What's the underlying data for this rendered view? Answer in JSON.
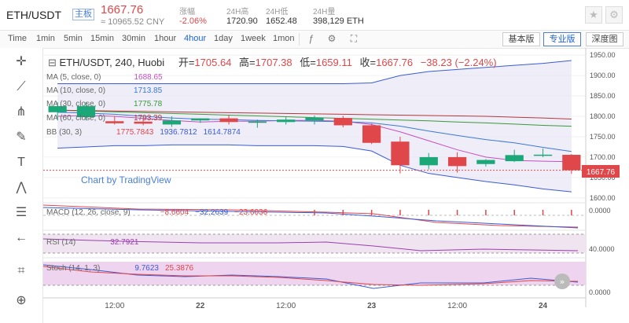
{
  "header": {
    "pair": "ETH/USDT",
    "tag": "主板",
    "last_price": "1667.76",
    "cny": "≈ 10965.52 CNY",
    "stats": [
      {
        "label": "涨幅",
        "value": "-2.06%",
        "red": true
      },
      {
        "label": "24H高",
        "value": "1720.90",
        "red": false
      },
      {
        "label": "24H低",
        "value": "1652.48",
        "red": false
      },
      {
        "label": "24H量",
        "value": "398,129 ETH",
        "red": false
      }
    ]
  },
  "toolbar": {
    "timeframes": [
      "Time",
      "1min",
      "5min",
      "15min",
      "30min",
      "1hour",
      "4hour",
      "1day",
      "1week",
      "1mon"
    ],
    "active": "4hour",
    "views": [
      "基本版",
      "专业版",
      "深度图"
    ],
    "active_view": "专业版"
  },
  "chart_data": {
    "type": "candlestick",
    "symbol_line": {
      "symbol": "ETH/USDT, 240, Huobi",
      "open_label": "开=",
      "open": "1705.64",
      "high_label": "高=",
      "high": "1707.38",
      "low_label": "低=",
      "low": "1659.11",
      "close_label": "收=",
      "close": "1667.76",
      "change": "−38.23 (−2.24%)"
    },
    "watermark": "Chart by TradingView",
    "price_axis": {
      "ticks": [
        1950,
        1900,
        1850,
        1800,
        1750,
        1700,
        1650,
        1600
      ],
      "ylim": [
        1590,
        1960
      ],
      "last": "1667.76"
    },
    "time_axis": {
      "labels": [
        "12:00",
        "22",
        "12:00",
        "23",
        "12:00",
        "24"
      ],
      "label_positions": [
        2.5,
        5.5,
        8.5,
        11.5,
        14.5,
        17.5
      ]
    },
    "candles": [
      {
        "o": 1810,
        "h": 1835,
        "l": 1790,
        "c": 1825
      },
      {
        "o": 1798,
        "h": 1835,
        "l": 1790,
        "c": 1825
      },
      {
        "o": 1788,
        "h": 1800,
        "l": 1780,
        "c": 1783
      },
      {
        "o": 1787,
        "h": 1795,
        "l": 1778,
        "c": 1782
      },
      {
        "o": 1780,
        "h": 1800,
        "l": 1774,
        "c": 1790
      },
      {
        "o": 1790,
        "h": 1795,
        "l": 1784,
        "c": 1795
      },
      {
        "o": 1795,
        "h": 1803,
        "l": 1780,
        "c": 1786
      },
      {
        "o": 1785,
        "h": 1792,
        "l": 1772,
        "c": 1787
      },
      {
        "o": 1786,
        "h": 1798,
        "l": 1780,
        "c": 1792
      },
      {
        "o": 1790,
        "h": 1802,
        "l": 1780,
        "c": 1797
      },
      {
        "o": 1796,
        "h": 1801,
        "l": 1773,
        "c": 1778
      },
      {
        "o": 1778,
        "h": 1782,
        "l": 1732,
        "c": 1735
      },
      {
        "o": 1738,
        "h": 1750,
        "l": 1660,
        "c": 1680
      },
      {
        "o": 1680,
        "h": 1710,
        "l": 1670,
        "c": 1700
      },
      {
        "o": 1700,
        "h": 1712,
        "l": 1662,
        "c": 1678
      },
      {
        "o": 1683,
        "h": 1695,
        "l": 1677,
        "c": 1693
      },
      {
        "o": 1690,
        "h": 1718,
        "l": 1688,
        "c": 1705
      },
      {
        "o": 1704,
        "h": 1721,
        "l": 1700,
        "c": 1706
      },
      {
        "o": 1705.64,
        "h": 1707.38,
        "l": 1659.11,
        "c": 1667.76
      }
    ],
    "ma_labels": [
      {
        "name": "MA (5, close, 0)",
        "value": "1688.65",
        "color": "#c64fc0"
      },
      {
        "name": "MA (10, close, 0)",
        "value": "1713.85",
        "color": "#3b7ad6"
      },
      {
        "name": "MA (30, close, 0)",
        "value": "1775.78",
        "color": "#3a9a3a"
      },
      {
        "name": "MA (60, close, 0)",
        "value": "1793.39",
        "color": "#b23a3a"
      }
    ],
    "bb_label": {
      "name": "BB (30, 3)",
      "values": [
        "1775.7843",
        "1936.7812",
        "1614.7874"
      ],
      "colors": [
        "#e0474a",
        "#3b5bd6",
        "#3b5bd6"
      ]
    },
    "series": [
      {
        "name": "MA (5, close, 0)",
        "color": "#c64fc0",
        "values": [
          1800,
          1802,
          1800,
          1795,
          1790,
          1786,
          1788,
          1788,
          1790,
          1790,
          1788,
          1780,
          1762,
          1740,
          1718,
          1700,
          1692,
          1690,
          1688.65
        ]
      },
      {
        "name": "MA (10, close, 0)",
        "color": "#3b7ad6",
        "values": [
          1810,
          1808,
          1805,
          1800,
          1796,
          1793,
          1792,
          1790,
          1789,
          1788,
          1787,
          1784,
          1776,
          1764,
          1753,
          1743,
          1735,
          1724,
          1713.85
        ]
      },
      {
        "name": "MA (30, close, 0)",
        "color": "#3a9a3a",
        "values": [
          1815,
          1813,
          1811,
          1809,
          1807,
          1805,
          1803,
          1801,
          1799,
          1797,
          1795,
          1793,
          1791,
          1789,
          1786,
          1784,
          1781,
          1778,
          1775.78
        ]
      },
      {
        "name": "MA (60, close, 0)",
        "color": "#b23a3a",
        "values": [
          1815,
          1814,
          1813,
          1812,
          1811,
          1810,
          1809,
          1808,
          1807,
          1806,
          1805,
          1804,
          1803,
          1802,
          1801,
          1800,
          1798,
          1796,
          1793.39
        ]
      },
      {
        "name": "BB upper",
        "color": "#3b5bd6",
        "values": [
          1880,
          1880,
          1880,
          1880,
          1880,
          1880,
          1880,
          1880,
          1880,
          1880,
          1880,
          1882,
          1900,
          1910,
          1915,
          1920,
          1925,
          1930,
          1936.78
        ]
      },
      {
        "name": "BB lower",
        "color": "#3b5bd6",
        "values": [
          1722,
          1725,
          1728,
          1728,
          1730,
          1730,
          1730,
          1728,
          1728,
          1728,
          1726,
          1715,
          1680,
          1660,
          1650,
          1640,
          1632,
          1622,
          1614.79
        ]
      }
    ],
    "panes": [
      {
        "label": "MACD (12, 26, close, 9)",
        "values": [
          "−8.6604",
          "−32.2639",
          "−23.6036"
        ],
        "axis": "0.0000"
      },
      {
        "label": "RSI (14)",
        "values": [
          "32.7921"
        ],
        "axis": "40.0000"
      },
      {
        "label": "Stoch (14, 1, 3)",
        "values": [
          "9.7623",
          "25.3876"
        ],
        "axis": "0.0000"
      }
    ]
  }
}
